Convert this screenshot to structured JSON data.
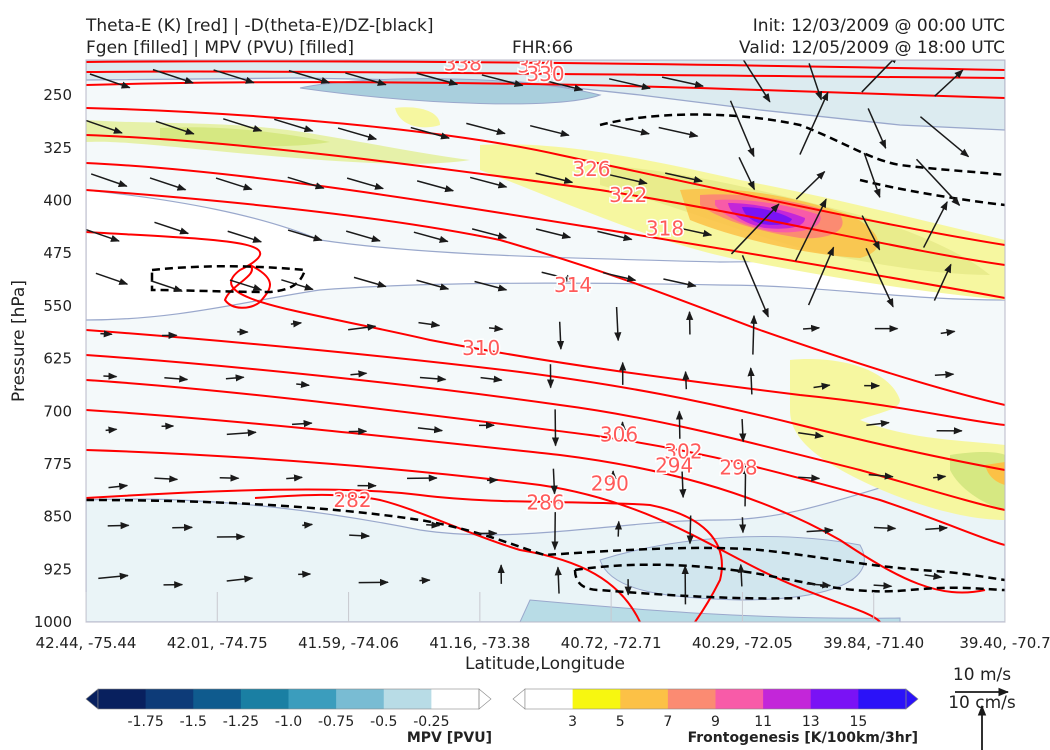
{
  "header": {
    "title_line1": "Theta-E (K) [red] | -D(theta-E)/DZ-[black]",
    "title_line2": "Fgen [filled] | MPV (PVU) [filled]",
    "fhr": "FHR:66",
    "init": "Init: 12/03/2009 @ 00:00 UTC",
    "valid": "Valid: 12/05/2009 @ 18:00 UTC"
  },
  "colors": {
    "theta_e": "#ff0000",
    "label": "#ff5a5a",
    "ddz": "#000000",
    "mpv_fill": "#dcebf0",
    "mpv_edge": "#9aa8cc",
    "fgen_fill": "#f6f7a0",
    "vectors": "#1a1a1a"
  },
  "chart_data": {
    "type": "cross-section",
    "xlabel": "Latitude,Longitude",
    "ylabel": "Pressure [hPa]",
    "xticks": [
      "42.44, -75.44",
      "42.01, -74.75",
      "41.59, -74.06",
      "41.16, -73.38",
      "40.72, -72.71",
      "40.29, -72.05",
      "39.84, -71.40",
      "39.40, -70.7"
    ],
    "yticks": [
      250,
      325,
      400,
      475,
      550,
      625,
      700,
      775,
      850,
      925,
      1000
    ],
    "ylim": [
      1000,
      200
    ],
    "theta_e_labels": [
      {
        "value": "338",
        "x": 0.41,
        "p": 205
      },
      {
        "value": "334",
        "x": 0.49,
        "p": 208
      },
      {
        "value": "330",
        "x": 0.5,
        "p": 220
      },
      {
        "value": "326",
        "x": 0.55,
        "p": 355
      },
      {
        "value": "322",
        "x": 0.59,
        "p": 392
      },
      {
        "value": "318",
        "x": 0.63,
        "p": 440
      },
      {
        "value": "314",
        "x": 0.53,
        "p": 520
      },
      {
        "value": "310",
        "x": 0.43,
        "p": 610
      },
      {
        "value": "306",
        "x": 0.58,
        "p": 733
      },
      {
        "value": "302",
        "x": 0.65,
        "p": 757
      },
      {
        "value": "298",
        "x": 0.71,
        "p": 780
      },
      {
        "value": "294",
        "x": 0.64,
        "p": 777
      },
      {
        "value": "290",
        "x": 0.57,
        "p": 803
      },
      {
        "value": "286",
        "x": 0.5,
        "p": 830
      },
      {
        "value": "282",
        "x": 0.29,
        "p": 826
      }
    ],
    "mpv_colorbar": {
      "title": "MPV [PVU]",
      "colors": [
        "#08205e",
        "#0d3b78",
        "#0f5b8e",
        "#1a7fa3",
        "#3b9dbd",
        "#79bcd3",
        "#b8dce6",
        "#ffffff"
      ],
      "labels": [
        "-1.75",
        "-1.5",
        "-1.25",
        "-1.0",
        "-0.75",
        "-0.5",
        "-0.25"
      ]
    },
    "fgen_colorbar": {
      "title": "Frontogenesis [K/100km/3hr]",
      "colors": [
        "#ffffff",
        "#f7f710",
        "#fcc146",
        "#fb8b72",
        "#f85ba8",
        "#c326d9",
        "#7a12f5",
        "#2b12f8"
      ],
      "labels": [
        "3",
        "5",
        "7",
        "9",
        "11",
        "13",
        "15"
      ]
    },
    "vector_key": {
      "label1": "10 m/s",
      "label2": "10 cm/s"
    }
  }
}
